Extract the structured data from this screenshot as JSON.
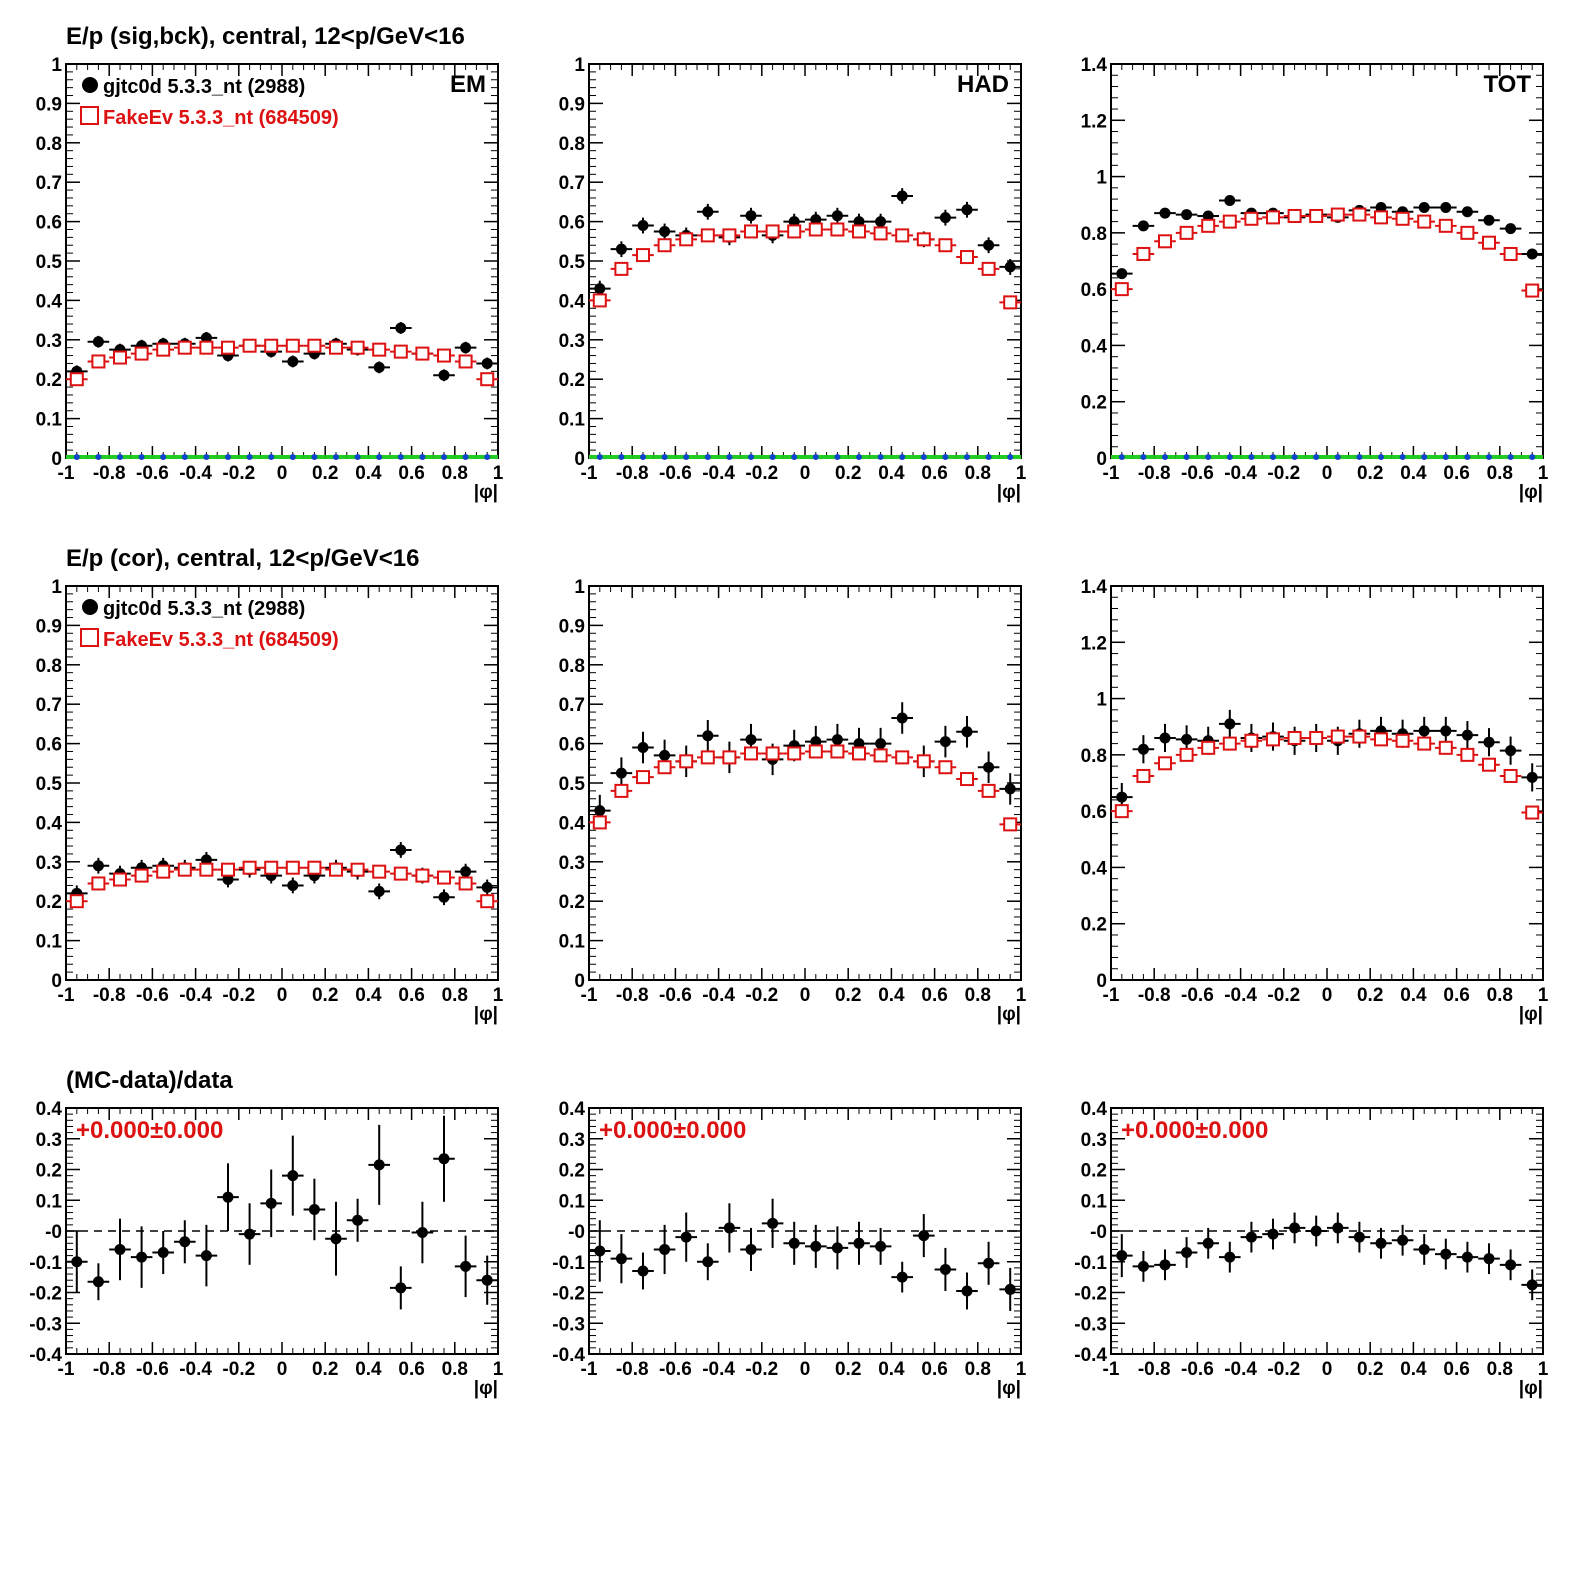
{
  "colors": {
    "data": "#000000",
    "mc": "#dd1111",
    "green": "#22cc22",
    "blue": "#1144cc",
    "annotation": "#dd1111"
  },
  "x_axis": {
    "label": "|φ|",
    "range": [
      -1,
      1
    ],
    "ticks": [
      "-1",
      "-0.8",
      "-0.6",
      "-0.4",
      "-0.2",
      "0",
      "0.2",
      "0.4",
      "0.6",
      "0.8",
      "1"
    ]
  },
  "legend": {
    "data_label": "gjtc0d 5.3.3_nt (2988)",
    "mc_label": "FakeEv 5.3.3_nt (684509)"
  },
  "rows": [
    {
      "title": "E/p (sig,bck), central, 12<p/GeV<16"
    },
    {
      "title": "E/p (cor), central, 12<p/GeV<16"
    },
    {
      "title": "(MC-data)/data"
    }
  ],
  "chart_data": [
    {
      "id": "r1-em",
      "type": "scatter",
      "corner_label": "EM",
      "ylim": [
        0,
        1
      ],
      "yticks": [
        "0",
        "0.1",
        "0.2",
        "0.3",
        "0.4",
        "0.5",
        "0.6",
        "0.7",
        "0.8",
        "0.9",
        "1"
      ],
      "x": [
        -0.95,
        -0.85,
        -0.75,
        -0.65,
        -0.55,
        -0.45,
        -0.35,
        -0.25,
        -0.15,
        -0.05,
        0.05,
        0.15,
        0.25,
        0.35,
        0.45,
        0.55,
        0.65,
        0.75,
        0.85,
        0.95
      ],
      "series": [
        {
          "name": "gjtc0d 5.3.3_nt (2988)",
          "values": [
            0.22,
            0.295,
            0.275,
            0.285,
            0.29,
            0.29,
            0.305,
            0.26,
            0.285,
            0.27,
            0.245,
            0.265,
            0.29,
            0.275,
            0.23,
            0.33,
            0.265,
            0.21,
            0.28,
            0.24
          ],
          "err": [
            0.015,
            0.015,
            0.015,
            0.015,
            0.015,
            0.015,
            0.015,
            0.015,
            0.015,
            0.015,
            0.015,
            0.015,
            0.015,
            0.015,
            0.015,
            0.015,
            0.015,
            0.015,
            0.015,
            0.015
          ]
        },
        {
          "name": "FakeEv 5.3.3_nt (684509)",
          "values": [
            0.2,
            0.245,
            0.255,
            0.265,
            0.275,
            0.28,
            0.28,
            0.28,
            0.285,
            0.285,
            0.285,
            0.285,
            0.28,
            0.28,
            0.275,
            0.27,
            0.265,
            0.26,
            0.245,
            0.2
          ]
        },
        {
          "values": [
            0,
            0,
            0,
            0,
            0,
            0,
            0,
            0,
            0,
            0,
            0,
            0,
            0,
            0,
            0,
            0,
            0,
            0,
            0,
            0
          ]
        }
      ]
    },
    {
      "id": "r1-had",
      "type": "scatter",
      "corner_label": "HAD",
      "ylim": [
        0,
        1
      ],
      "yticks": [
        "0",
        "0.1",
        "0.2",
        "0.3",
        "0.4",
        "0.5",
        "0.6",
        "0.7",
        "0.8",
        "0.9",
        "1"
      ],
      "x": [
        -0.95,
        -0.85,
        -0.75,
        -0.65,
        -0.55,
        -0.45,
        -0.35,
        -0.25,
        -0.15,
        -0.05,
        0.05,
        0.15,
        0.25,
        0.35,
        0.45,
        0.55,
        0.65,
        0.75,
        0.85,
        0.95
      ],
      "series": [
        {
          "name": "gjtc0d 5.3.3_nt (2988)",
          "values": [
            0.43,
            0.53,
            0.59,
            0.575,
            0.565,
            0.625,
            0.56,
            0.615,
            0.565,
            0.6,
            0.605,
            0.615,
            0.6,
            0.6,
            0.665,
            0.555,
            0.61,
            0.63,
            0.54,
            0.485
          ],
          "err": [
            0.02,
            0.02,
            0.02,
            0.02,
            0.02,
            0.02,
            0.02,
            0.02,
            0.02,
            0.02,
            0.02,
            0.02,
            0.02,
            0.02,
            0.02,
            0.02,
            0.02,
            0.02,
            0.02,
            0.02
          ]
        },
        {
          "name": "FakeEv 5.3.3_nt (684509)",
          "values": [
            0.4,
            0.48,
            0.515,
            0.54,
            0.555,
            0.565,
            0.565,
            0.575,
            0.575,
            0.575,
            0.58,
            0.58,
            0.575,
            0.57,
            0.565,
            0.555,
            0.54,
            0.51,
            0.48,
            0.395
          ]
        },
        {
          "values": [
            0,
            0,
            0,
            0,
            0,
            0,
            0,
            0,
            0,
            0,
            0,
            0,
            0,
            0,
            0,
            0,
            0,
            0,
            0,
            0
          ]
        }
      ]
    },
    {
      "id": "r1-tot",
      "type": "scatter",
      "corner_label": "TOT",
      "ylim": [
        0,
        1.4
      ],
      "yticks": [
        "0",
        "0.2",
        "0.4",
        "0.6",
        "0.8",
        "1",
        "1.2",
        "1.4"
      ],
      "x": [
        -0.95,
        -0.85,
        -0.75,
        -0.65,
        -0.55,
        -0.45,
        -0.35,
        -0.25,
        -0.15,
        -0.05,
        0.05,
        0.15,
        0.25,
        0.35,
        0.45,
        0.55,
        0.65,
        0.75,
        0.85,
        0.95
      ],
      "series": [
        {
          "name": "gjtc0d 5.3.3_nt (2988)",
          "values": [
            0.655,
            0.825,
            0.87,
            0.865,
            0.86,
            0.915,
            0.87,
            0.87,
            0.855,
            0.865,
            0.855,
            0.88,
            0.89,
            0.875,
            0.89,
            0.89,
            0.875,
            0.845,
            0.815,
            0.725
          ],
          "err": [
            0.015,
            0.015,
            0.015,
            0.015,
            0.015,
            0.015,
            0.015,
            0.015,
            0.015,
            0.015,
            0.015,
            0.015,
            0.015,
            0.015,
            0.015,
            0.015,
            0.015,
            0.015,
            0.015,
            0.015
          ]
        },
        {
          "name": "FakeEv 5.3.3_nt (684509)",
          "values": [
            0.6,
            0.725,
            0.77,
            0.8,
            0.825,
            0.84,
            0.85,
            0.855,
            0.86,
            0.86,
            0.865,
            0.865,
            0.855,
            0.85,
            0.84,
            0.825,
            0.8,
            0.765,
            0.725,
            0.595
          ]
        },
        {
          "values": [
            0,
            0,
            0,
            0,
            0,
            0,
            0,
            0,
            0,
            0,
            0,
            0,
            0,
            0,
            0,
            0,
            0,
            0,
            0,
            0
          ]
        }
      ]
    },
    {
      "id": "r2-em",
      "type": "scatter",
      "ylim": [
        0,
        1
      ],
      "yticks": [
        "0",
        "0.1",
        "0.2",
        "0.3",
        "0.4",
        "0.5",
        "0.6",
        "0.7",
        "0.8",
        "0.9",
        "1"
      ],
      "x": [
        -0.95,
        -0.85,
        -0.75,
        -0.65,
        -0.55,
        -0.45,
        -0.35,
        -0.25,
        -0.15,
        -0.05,
        0.05,
        0.15,
        0.25,
        0.35,
        0.45,
        0.55,
        0.65,
        0.75,
        0.85,
        0.95
      ],
      "series": [
        {
          "name": "gjtc0d 5.3.3_nt (2988)",
          "values": [
            0.22,
            0.29,
            0.27,
            0.285,
            0.29,
            0.285,
            0.305,
            0.255,
            0.28,
            0.265,
            0.24,
            0.265,
            0.285,
            0.275,
            0.225,
            0.33,
            0.265,
            0.21,
            0.275,
            0.235
          ],
          "err": [
            0.02,
            0.02,
            0.02,
            0.02,
            0.02,
            0.02,
            0.02,
            0.02,
            0.02,
            0.02,
            0.02,
            0.02,
            0.02,
            0.02,
            0.02,
            0.02,
            0.02,
            0.02,
            0.02,
            0.02
          ]
        },
        {
          "name": "FakeEv 5.3.3_nt (684509)",
          "values": [
            0.2,
            0.245,
            0.255,
            0.265,
            0.275,
            0.28,
            0.28,
            0.28,
            0.285,
            0.285,
            0.285,
            0.285,
            0.28,
            0.28,
            0.275,
            0.27,
            0.265,
            0.26,
            0.245,
            0.2
          ]
        }
      ]
    },
    {
      "id": "r2-had",
      "type": "scatter",
      "ylim": [
        0,
        1
      ],
      "yticks": [
        "0",
        "0.1",
        "0.2",
        "0.3",
        "0.4",
        "0.5",
        "0.6",
        "0.7",
        "0.8",
        "0.9",
        "1"
      ],
      "x": [
        -0.95,
        -0.85,
        -0.75,
        -0.65,
        -0.55,
        -0.45,
        -0.35,
        -0.25,
        -0.15,
        -0.05,
        0.05,
        0.15,
        0.25,
        0.35,
        0.45,
        0.55,
        0.65,
        0.75,
        0.85,
        0.95
      ],
      "series": [
        {
          "name": "gjtc0d 5.3.3_nt (2988)",
          "values": [
            0.43,
            0.525,
            0.59,
            0.57,
            0.555,
            0.62,
            0.565,
            0.61,
            0.56,
            0.595,
            0.605,
            0.61,
            0.6,
            0.6,
            0.665,
            0.555,
            0.605,
            0.63,
            0.54,
            0.485
          ],
          "err": [
            0.04,
            0.04,
            0.04,
            0.04,
            0.04,
            0.04,
            0.04,
            0.04,
            0.04,
            0.04,
            0.04,
            0.04,
            0.04,
            0.04,
            0.04,
            0.04,
            0.04,
            0.04,
            0.04,
            0.04
          ]
        },
        {
          "name": "FakeEv 5.3.3_nt (684509)",
          "values": [
            0.4,
            0.48,
            0.515,
            0.54,
            0.555,
            0.565,
            0.565,
            0.575,
            0.575,
            0.575,
            0.58,
            0.58,
            0.575,
            0.57,
            0.565,
            0.555,
            0.54,
            0.51,
            0.48,
            0.395
          ]
        }
      ]
    },
    {
      "id": "r2-tot",
      "type": "scatter",
      "ylim": [
        0,
        1.4
      ],
      "yticks": [
        "0",
        "0.2",
        "0.4",
        "0.6",
        "0.8",
        "1",
        "1.2",
        "1.4"
      ],
      "x": [
        -0.95,
        -0.85,
        -0.75,
        -0.65,
        -0.55,
        -0.45,
        -0.35,
        -0.25,
        -0.15,
        -0.05,
        0.05,
        0.15,
        0.25,
        0.35,
        0.45,
        0.55,
        0.65,
        0.75,
        0.85,
        0.95
      ],
      "series": [
        {
          "name": "gjtc0d 5.3.3_nt (2988)",
          "values": [
            0.65,
            0.82,
            0.86,
            0.855,
            0.85,
            0.91,
            0.86,
            0.865,
            0.85,
            0.86,
            0.85,
            0.875,
            0.885,
            0.875,
            0.885,
            0.885,
            0.87,
            0.845,
            0.815,
            0.72
          ],
          "err": [
            0.05,
            0.05,
            0.05,
            0.05,
            0.05,
            0.05,
            0.05,
            0.05,
            0.05,
            0.05,
            0.05,
            0.05,
            0.05,
            0.05,
            0.05,
            0.05,
            0.05,
            0.05,
            0.05,
            0.05
          ]
        },
        {
          "name": "FakeEv 5.3.3_nt (684509)",
          "values": [
            0.6,
            0.725,
            0.77,
            0.8,
            0.825,
            0.84,
            0.85,
            0.855,
            0.86,
            0.86,
            0.865,
            0.865,
            0.855,
            0.85,
            0.84,
            0.825,
            0.8,
            0.765,
            0.725,
            0.595
          ]
        }
      ]
    },
    {
      "id": "r3-em",
      "type": "scatter",
      "annotation": "+0.000±0.000",
      "ylim": [
        -0.4,
        0.4
      ],
      "yticks": [
        "-0.4",
        "-0.3",
        "-0.2",
        "-0.1",
        "-0",
        "0.1",
        "0.2",
        "0.3",
        "0.4"
      ],
      "x": [
        -0.95,
        -0.85,
        -0.75,
        -0.65,
        -0.55,
        -0.45,
        -0.35,
        -0.25,
        -0.15,
        -0.05,
        0.05,
        0.15,
        0.25,
        0.35,
        0.45,
        0.55,
        0.65,
        0.75,
        0.85,
        0.95
      ],
      "series": [
        {
          "name": "(MC-data)/data",
          "values": [
            -0.1,
            -0.165,
            -0.06,
            -0.085,
            -0.07,
            -0.035,
            -0.08,
            0.11,
            -0.01,
            0.09,
            0.18,
            0.07,
            -0.025,
            0.035,
            0.215,
            -0.185,
            -0.005,
            0.235,
            -0.115,
            -0.16
          ],
          "err": [
            0.1,
            0.06,
            0.1,
            0.1,
            0.07,
            0.07,
            0.1,
            0.11,
            0.1,
            0.11,
            0.13,
            0.1,
            0.12,
            0.07,
            0.13,
            0.07,
            0.1,
            0.14,
            0.1,
            0.08
          ]
        }
      ]
    },
    {
      "id": "r3-had",
      "type": "scatter",
      "annotation": "+0.000±0.000",
      "ylim": [
        -0.4,
        0.4
      ],
      "yticks": [
        "-0.4",
        "-0.3",
        "-0.2",
        "-0.1",
        "-0",
        "0.1",
        "0.2",
        "0.3",
        "0.4"
      ],
      "x": [
        -0.95,
        -0.85,
        -0.75,
        -0.65,
        -0.55,
        -0.45,
        -0.35,
        -0.25,
        -0.15,
        -0.05,
        0.05,
        0.15,
        0.25,
        0.35,
        0.45,
        0.55,
        0.65,
        0.75,
        0.85,
        0.95
      ],
      "series": [
        {
          "name": "(MC-data)/data",
          "values": [
            -0.065,
            -0.09,
            -0.13,
            -0.06,
            -0.02,
            -0.1,
            0.01,
            -0.06,
            0.025,
            -0.04,
            -0.05,
            -0.055,
            -0.04,
            -0.05,
            -0.15,
            -0.015,
            -0.125,
            -0.195,
            -0.105,
            -0.19
          ],
          "err": [
            0.1,
            0.08,
            0.06,
            0.08,
            0.08,
            0.06,
            0.08,
            0.07,
            0.08,
            0.07,
            0.07,
            0.07,
            0.07,
            0.06,
            0.05,
            0.07,
            0.07,
            0.06,
            0.07,
            0.07
          ]
        }
      ]
    },
    {
      "id": "r3-tot",
      "type": "scatter",
      "annotation": "+0.000±0.000",
      "ylim": [
        -0.4,
        0.4
      ],
      "yticks": [
        "-0.4",
        "-0.3",
        "-0.2",
        "-0.1",
        "-0",
        "0.1",
        "0.2",
        "0.3",
        "0.4"
      ],
      "x": [
        -0.95,
        -0.85,
        -0.75,
        -0.65,
        -0.55,
        -0.45,
        -0.35,
        -0.25,
        -0.15,
        -0.05,
        0.05,
        0.15,
        0.25,
        0.35,
        0.45,
        0.55,
        0.65,
        0.75,
        0.85,
        0.95
      ],
      "series": [
        {
          "name": "(MC-data)/data",
          "values": [
            -0.08,
            -0.115,
            -0.11,
            -0.07,
            -0.04,
            -0.085,
            -0.02,
            -0.01,
            0.01,
            0,
            0.01,
            -0.02,
            -0.04,
            -0.03,
            -0.06,
            -0.075,
            -0.085,
            -0.09,
            -0.11,
            -0.175
          ],
          "err": [
            0.07,
            0.05,
            0.05,
            0.05,
            0.05,
            0.05,
            0.05,
            0.05,
            0.05,
            0.05,
            0.05,
            0.05,
            0.05,
            0.05,
            0.05,
            0.05,
            0.05,
            0.05,
            0.05,
            0.05
          ]
        }
      ]
    }
  ]
}
